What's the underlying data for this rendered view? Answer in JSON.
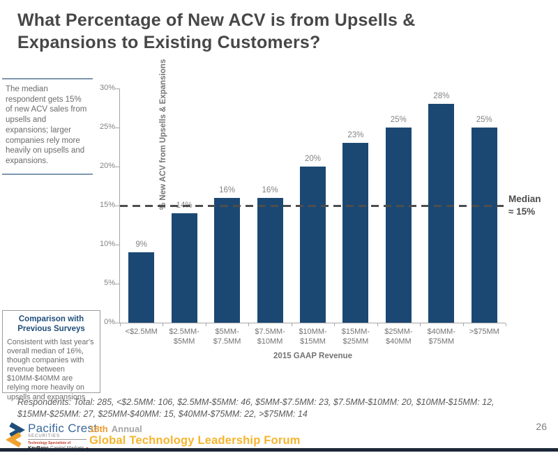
{
  "slide": {
    "title_lines": [
      "What Percentage of New ACV is from Upsells &",
      "Expansions to Existing Customers?"
    ],
    "page_number": "26"
  },
  "sidebar": {
    "note": "The median respondent gets 15% of new ACV sales from upsells and expansions; larger companies rely more heavily on upsells and expansions."
  },
  "comparison_box": {
    "title_lines": [
      "Comparison with",
      "Previous Surveys"
    ],
    "body": "Consistent with last year's overall median of 16%, though companies with revenue between $10MM-$40MM are relying more heavily on upsells and expansions"
  },
  "chart_data": {
    "type": "bar",
    "categories": [
      "<$2.5MM",
      "$2.5MM-\n$5MM",
      "$5MM-\n$7.5MM",
      "$7.5MM-\n$10MM",
      "$10MM-\n$15MM",
      "$15MM-\n$25MM",
      "$25MM-\n$40MM",
      "$40MM-\n$75MM",
      ">$75MM"
    ],
    "values": [
      9,
      14,
      16,
      16,
      20,
      23,
      25,
      28,
      25
    ],
    "bar_labels": [
      "9%",
      "14%",
      "16%",
      "16%",
      "20%",
      "23%",
      "25%",
      "28%",
      "25%"
    ],
    "title": "",
    "xlabel": "2015 GAAP Revenue",
    "ylabel": "% New ACV from Upsells & Expansions",
    "ylim": [
      0,
      30
    ],
    "ytick_step": 5,
    "yticks": [
      "0%",
      "5%",
      "10%",
      "15%",
      "20%",
      "25%",
      "30%"
    ],
    "grid": false,
    "legend": "none",
    "bar_color": "#1b4872",
    "median": {
      "value": 15,
      "label_lines": [
        "Median",
        "≈ 15%"
      ],
      "line_style": "dashed",
      "line_color": "#4d4d4d"
    }
  },
  "respondents_note": "Respondents: Total: 285, <$2.5MM: 106, $2.5MM-$5MM: 46, $5MM-$7.5MM: 23, $7.5MM-$10MM: 20, $10MM-$15MM: 12, $15MM-$25MM: 27, $25MM-$40MM: 15, $40MM-$75MM: 22, >$75MM: 14",
  "footer": {
    "logo": {
      "name": "Pacific Crest",
      "subname": "SECURITIES",
      "tagline": "Technology Specialists of",
      "parent_bold": "KeyBanc",
      "parent_rest": "Capital Markets",
      "mark_colors": {
        "navy": "#1f4e79",
        "orange": "#f0a22e"
      }
    },
    "event": {
      "annual_number": "18th",
      "annual_word": "Annual",
      "forum": "Global Technology Leadership Forum",
      "accent_color": "#f6b42c"
    }
  }
}
